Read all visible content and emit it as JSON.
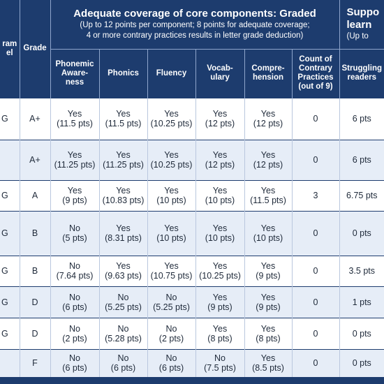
{
  "header": {
    "level": [
      "ram",
      "el"
    ],
    "grade": [
      "Grade"
    ],
    "group1": {
      "title": "Adequate coverage of core components: Graded",
      "notes": [
        "(Up to 12 points per component; 8 points for adequate coverage;",
        "4 or more contrary practices results in letter grade deduction)"
      ]
    },
    "group2": [
      "Suppo",
      "learn",
      "(Up to"
    ],
    "columns": [
      [
        "Phonemic",
        "Aware-",
        "ness"
      ],
      [
        "Phonics"
      ],
      [
        "Fluency"
      ],
      [
        "Vocab-",
        "ulary"
      ],
      [
        "Compre-",
        "hension"
      ],
      [
        "Count of",
        "Contrary",
        "Practices",
        "(out of 9)"
      ],
      [
        "Struggling",
        "readers"
      ]
    ]
  },
  "rows": [
    [
      "G",
      "A+",
      [
        "Yes",
        "(11.5 pts)"
      ],
      [
        "Yes",
        "(11.5 pts)"
      ],
      [
        "Yes",
        "(10.25 pts)"
      ],
      [
        "Yes",
        "(12 pts)"
      ],
      [
        "Yes",
        "(12 pts)"
      ],
      0,
      "6 pts"
    ],
    [
      null,
      "A+",
      [
        "Yes",
        "(11.25 pts)"
      ],
      [
        "Yes",
        "(11.25 pts)"
      ],
      [
        "Yes",
        "(10.25 pts)"
      ],
      [
        "Yes",
        "(12 pts)"
      ],
      [
        "Yes",
        "(12 pts)"
      ],
      0,
      "6 pts"
    ],
    [
      "G",
      "A",
      [
        "Yes",
        "(9 pts)"
      ],
      [
        "Yes",
        "(10.83 pts)"
      ],
      [
        "Yes",
        "(10 pts)"
      ],
      [
        "Yes",
        "(10 pts)"
      ],
      [
        "Yes",
        "(11.5 pts)"
      ],
      3,
      "6.75 pts"
    ],
    [
      "G",
      "B",
      [
        "No",
        "(5 pts)"
      ],
      [
        "Yes",
        "(8.31 pts)"
      ],
      [
        "Yes",
        "(10 pts)"
      ],
      [
        "Yes",
        "(10 pts)"
      ],
      [
        "Yes",
        "(10 pts)"
      ],
      0,
      "0 pts"
    ],
    [
      "G",
      "B",
      [
        "No",
        "(7.64 pts)"
      ],
      [
        "Yes",
        "(9.63 pts)"
      ],
      [
        "Yes",
        "(10.75 pts)"
      ],
      [
        "Yes",
        "(10.25 pts)"
      ],
      [
        "Yes",
        "(9 pts)"
      ],
      0,
      "3.5 pts"
    ],
    [
      "G",
      "D",
      [
        "No",
        "(6 pts)"
      ],
      [
        "No",
        "(5.25 pts)"
      ],
      [
        "No",
        "(5.25 pts)"
      ],
      [
        "Yes",
        "(9 pts)"
      ],
      [
        "Yes",
        "(9 pts)"
      ],
      0,
      "1 pts"
    ],
    [
      "G",
      "D",
      [
        "No",
        "(2 pts)"
      ],
      [
        "No",
        "(5.28 pts)"
      ],
      [
        "No",
        "(2 pts)"
      ],
      [
        "Yes",
        "(8 pts)"
      ],
      [
        "Yes",
        "(8 pts)"
      ],
      0,
      "0 pts"
    ],
    [
      null,
      "F",
      [
        "No",
        "(6 pts)"
      ],
      [
        "No",
        "(6 pts)"
      ],
      [
        "No",
        "(6 pts)"
      ],
      [
        "No",
        "(7.5 pts)"
      ],
      [
        "Yes",
        "(8.5 pts)"
      ],
      0,
      "0 pts"
    ]
  ]
}
